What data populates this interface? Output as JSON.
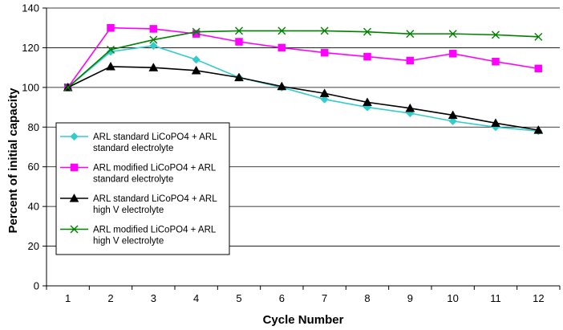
{
  "chart_data": {
    "type": "line",
    "title": "",
    "xlabel": "Cycle Number",
    "ylabel": "Percent of initial capacity",
    "categories": [
      "1",
      "2",
      "3",
      "4",
      "5",
      "6",
      "7",
      "8",
      "9",
      "10",
      "11",
      "12"
    ],
    "ylim": [
      0,
      140
    ],
    "yticks": [
      0,
      20,
      40,
      60,
      80,
      100,
      120,
      140
    ],
    "grid": true,
    "legend_position": "left",
    "series": [
      {
        "name": "ARL standard LiCoPO4 + ARL standard electrolyte",
        "legend_lines": [
          "ARL standard LiCoPO4 + ARL",
          "standard electrolyte"
        ],
        "color": "#33CCCC",
        "marker": "diamond",
        "values": [
          100,
          118,
          121,
          114,
          105,
          100,
          94,
          90,
          87,
          83,
          80,
          78
        ]
      },
      {
        "name": "ARL modified LiCoPO4 + ARL standard electrolyte",
        "legend_lines": [
          "ARL modified LiCoPO4 +  ARL",
          "standard electrolyte"
        ],
        "color": "#FF00FF",
        "marker": "square",
        "values": [
          100,
          130,
          129.5,
          127,
          123,
          120,
          117.5,
          115.5,
          113.5,
          117,
          113,
          109.5
        ]
      },
      {
        "name": "ARL standard LiCoPO4 + ARL high V electrolyte",
        "legend_lines": [
          "ARL standard LiCoPO4 + ARL",
          "high V electrolyte"
        ],
        "color": "#000000",
        "marker": "triangle",
        "values": [
          100,
          110.5,
          110,
          108.5,
          105,
          100.5,
          97,
          92.5,
          89.5,
          86,
          82,
          78.5
        ]
      },
      {
        "name": "ARL modified LiCoPO4 + ARL high V electrolyte",
        "legend_lines": [
          "ARL modified LiCoPO4 +  ARL",
          "high V electrolyte"
        ],
        "color": "#008000",
        "marker": "x",
        "values": [
          100,
          119,
          124,
          128,
          128.5,
          128.5,
          128.5,
          128,
          127,
          127,
          126.5,
          125.5
        ]
      }
    ]
  }
}
